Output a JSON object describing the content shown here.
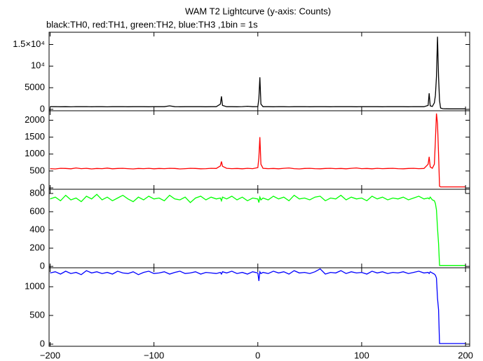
{
  "chart_data": {
    "type": "line",
    "title": "WAM T2 Lightcurve (y-axis: Counts)",
    "subtitle": "black:TH0, red:TH1, green:TH2, blue:TH3 ,1bin = 1s",
    "x": [
      -200,
      -195,
      -190,
      -185,
      -180,
      -175,
      -170,
      -165,
      -160,
      -155,
      -150,
      -145,
      -140,
      -135,
      -130,
      -125,
      -120,
      -115,
      -110,
      -105,
      -100,
      -95,
      -90,
      -85,
      -80,
      -75,
      -70,
      -65,
      -60,
      -55,
      -50,
      -45,
      -40,
      -36,
      -35,
      -34,
      -30,
      -25,
      -20,
      -15,
      -10,
      -5,
      0,
      1,
      2,
      3,
      5,
      10,
      15,
      20,
      25,
      30,
      35,
      40,
      45,
      50,
      55,
      60,
      65,
      70,
      75,
      80,
      85,
      90,
      95,
      100,
      105,
      110,
      115,
      120,
      125,
      130,
      135,
      140,
      145,
      150,
      155,
      160,
      164,
      165,
      166,
      168,
      170,
      171,
      172,
      173,
      174,
      175,
      176,
      178,
      180,
      185,
      190,
      195,
      200
    ],
    "xlim": [
      -201,
      204
    ],
    "xticks": [
      {
        "value": -200,
        "label": "−200"
      },
      {
        "value": -100,
        "label": "−100"
      },
      0,
      100,
      200
    ],
    "series": [
      {
        "color": "#000000",
        "ylim": [
          -333,
          17833
        ],
        "yticks": [
          0,
          5000,
          {
            "value": 10000,
            "label": "10⁴"
          },
          {
            "value": 15000,
            "label": "1.5×10⁴"
          }
        ],
        "values": [
          600,
          620,
          590,
          610,
          580,
          630,
          600,
          610,
          590,
          620,
          600,
          580,
          610,
          600,
          620,
          590,
          600,
          610,
          600,
          590,
          620,
          600,
          610,
          800,
          600,
          590,
          610,
          600,
          620,
          600,
          590,
          610,
          600,
          1200,
          3000,
          900,
          600,
          610,
          590,
          620,
          700,
          600,
          620,
          2500,
          7400,
          1200,
          600,
          610,
          590,
          620,
          600,
          580,
          610,
          600,
          620,
          590,
          600,
          610,
          600,
          590,
          620,
          600,
          610,
          600,
          590,
          620,
          600,
          610,
          600,
          590,
          620,
          600,
          610,
          600,
          590,
          620,
          600,
          610,
          900,
          3700,
          800,
          650,
          1500,
          3200,
          7500,
          16800,
          7500,
          2000,
          300,
          150,
          120,
          100,
          110,
          100,
          100
        ]
      },
      {
        "color": "#ff0000",
        "ylim": [
          -40,
          2280
        ],
        "yticks": [
          0,
          500,
          1000,
          1500,
          2000
        ],
        "values": [
          570,
          560,
          580,
          575,
          565,
          590,
          570,
          580,
          560,
          575,
          570,
          585,
          565,
          575,
          580,
          570,
          560,
          575,
          570,
          580,
          565,
          575,
          570,
          580,
          575,
          560,
          570,
          580,
          575,
          565,
          570,
          580,
          575,
          650,
          780,
          640,
          580,
          570,
          575,
          565,
          580,
          570,
          600,
          900,
          1500,
          700,
          580,
          570,
          575,
          565,
          580,
          590,
          570,
          560,
          575,
          580,
          570,
          565,
          575,
          580,
          570,
          575,
          565,
          580,
          590,
          570,
          575,
          565,
          580,
          570,
          575,
          580,
          570,
          565,
          575,
          580,
          570,
          575,
          700,
          920,
          620,
          580,
          700,
          1400,
          2200,
          1900,
          1000,
          50,
          30,
          30,
          30,
          30,
          30,
          30,
          30
        ]
      },
      {
        "color": "#00ff00",
        "ylim": [
          -15,
          846
        ],
        "yticks": [
          0,
          200,
          400,
          600,
          800
        ],
        "values": [
          740,
          760,
          720,
          780,
          730,
          750,
          710,
          770,
          740,
          790,
          730,
          760,
          720,
          750,
          780,
          740,
          710,
          760,
          730,
          770,
          740,
          750,
          720,
          780,
          740,
          730,
          760,
          700,
          750,
          770,
          730,
          760,
          740,
          750,
          720,
          760,
          740,
          770,
          730,
          760,
          720,
          750,
          740,
          700,
          760,
          730,
          750,
          730,
          770,
          740,
          760,
          720,
          780,
          740,
          750,
          730,
          760,
          770,
          720,
          750,
          740,
          780,
          730,
          760,
          740,
          750,
          720,
          770,
          740,
          760,
          730,
          750,
          740,
          760,
          730,
          750,
          770,
          740,
          750,
          740,
          760,
          730,
          720,
          690,
          620,
          420,
          250,
          10,
          10,
          10,
          10,
          10,
          10,
          10,
          10
        ]
      },
      {
        "color": "#0000ff",
        "ylim": [
          -37,
          1330
        ],
        "yticks": [
          0,
          500,
          1000
        ],
        "values": [
          1240,
          1260,
          1220,
          1270,
          1230,
          1250,
          1210,
          1280,
          1240,
          1260,
          1230,
          1250,
          1220,
          1270,
          1240,
          1230,
          1260,
          1210,
          1250,
          1270,
          1230,
          1240,
          1260,
          1220,
          1250,
          1270,
          1230,
          1240,
          1260,
          1220,
          1250,
          1240,
          1230,
          1250,
          1220,
          1260,
          1240,
          1270,
          1230,
          1250,
          1220,
          1260,
          1240,
          1100,
          1260,
          1230,
          1250,
          1230,
          1270,
          1240,
          1260,
          1220,
          1280,
          1240,
          1250,
          1230,
          1260,
          1310,
          1220,
          1250,
          1240,
          1280,
          1230,
          1260,
          1240,
          1250,
          1220,
          1270,
          1240,
          1260,
          1230,
          1250,
          1240,
          1260,
          1230,
          1250,
          1270,
          1240,
          1250,
          1230,
          1260,
          1240,
          1220,
          1200,
          1150,
          800,
          600,
          10,
          10,
          10,
          10,
          10,
          10,
          10,
          10
        ]
      }
    ]
  }
}
